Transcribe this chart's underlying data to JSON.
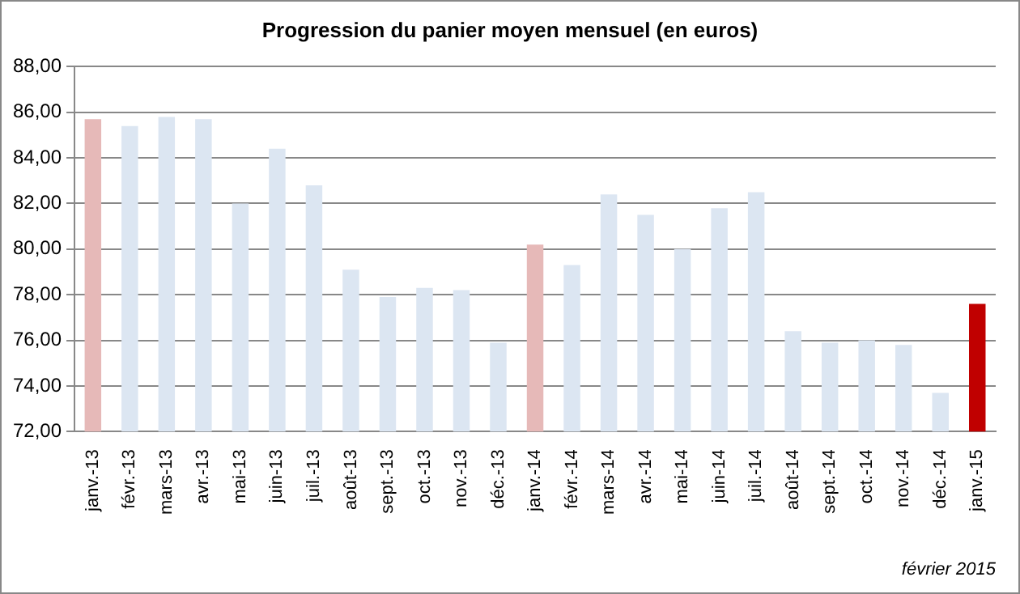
{
  "chart_data": {
    "type": "bar",
    "title": "Progression du panier moyen mensuel (en euros)",
    "categories": [
      "janv.-13",
      "févr.-13",
      "mars-13",
      "avr.-13",
      "mai-13",
      "juin-13",
      "juil.-13",
      "août-13",
      "sept.-13",
      "oct.-13",
      "nov.-13",
      "déc.-13",
      "janv.-14",
      "févr.-14",
      "mars-14",
      "avr.-14",
      "mai-14",
      "juin-14",
      "juil.-14",
      "août-14",
      "sept.-14",
      "oct.-14",
      "nov.-14",
      "déc.-14",
      "janv.-15"
    ],
    "values": [
      85.7,
      85.4,
      85.8,
      85.7,
      82.0,
      84.4,
      82.8,
      79.1,
      77.9,
      78.3,
      78.2,
      75.9,
      80.2,
      79.3,
      82.4,
      81.5,
      80.0,
      81.8,
      82.5,
      76.4,
      75.9,
      76.0,
      75.8,
      73.7,
      77.6
    ],
    "colors": [
      "#e6b9b8",
      "#dce6f2",
      "#dce6f2",
      "#dce6f2",
      "#dce6f2",
      "#dce6f2",
      "#dce6f2",
      "#dce6f2",
      "#dce6f2",
      "#dce6f2",
      "#dce6f2",
      "#dce6f2",
      "#e6b9b8",
      "#dce6f2",
      "#dce6f2",
      "#dce6f2",
      "#dce6f2",
      "#dce6f2",
      "#dce6f2",
      "#dce6f2",
      "#dce6f2",
      "#dce6f2",
      "#dce6f2",
      "#dce6f2",
      "#c00000"
    ],
    "ylim": [
      72,
      88
    ],
    "yticks": [
      {
        "value": 72,
        "label": "72,00"
      },
      {
        "value": 74,
        "label": "74,00"
      },
      {
        "value": 76,
        "label": "76,00"
      },
      {
        "value": 78,
        "label": "78,00"
      },
      {
        "value": 80,
        "label": "80,00"
      },
      {
        "value": 82,
        "label": "82,00"
      },
      {
        "value": 84,
        "label": "84,00"
      },
      {
        "value": 86,
        "label": "86,00"
      },
      {
        "value": 88,
        "label": "88,00"
      }
    ],
    "grid": "y",
    "annotations": [
      "février 2015"
    ]
  }
}
